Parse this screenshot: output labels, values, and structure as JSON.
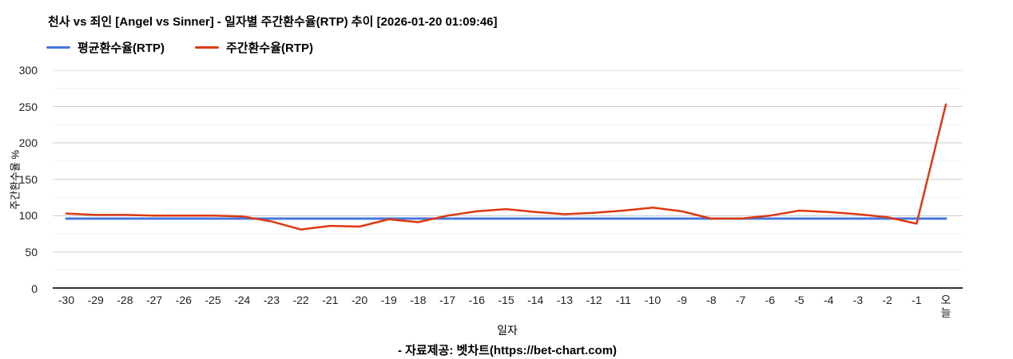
{
  "header": {
    "window_context": "bet-chart weekly RTP trend chart"
  },
  "chart_data": {
    "type": "line",
    "title": "천사 vs 죄인 [Angel vs Sinner] - 일자별 주간환수율(RTP) 추이 [2026-01-20 01:09:46]",
    "xlabel": "일자",
    "ylabel": "주간환수율 %",
    "ylim": [
      0,
      300
    ],
    "yticks": [
      0,
      50,
      100,
      150,
      200,
      250,
      300
    ],
    "grid": true,
    "legend_position": "top",
    "categories": [
      "-30",
      "-29",
      "-28",
      "-27",
      "-26",
      "-25",
      "-24",
      "-23",
      "-22",
      "-21",
      "-20",
      "-19",
      "-18",
      "-17",
      "-16",
      "-15",
      "-14",
      "-13",
      "-12",
      "-11",
      "-10",
      "-9",
      "-8",
      "-7",
      "-6",
      "-5",
      "-4",
      "-3",
      "-2",
      "-1",
      "오늘"
    ],
    "series": [
      {
        "name": "평균환수율(RTP)",
        "color": "#4577dd",
        "values": [
          96,
          96,
          96,
          96,
          96,
          96,
          96,
          96,
          96,
          96,
          96,
          96,
          96,
          96,
          96,
          96,
          96,
          96,
          96,
          96,
          96,
          96,
          96,
          96,
          96,
          96,
          96,
          96,
          96,
          96,
          96
        ]
      },
      {
        "name": "주간환수율(RTP)",
        "color": "#dc3912",
        "values": [
          103,
          101,
          101,
          100,
          100,
          100,
          99,
          92,
          81,
          86,
          85,
          95,
          91,
          100,
          106,
          109,
          105,
          102,
          104,
          107,
          111,
          106,
          96,
          96,
          100,
          107,
          105,
          102,
          98,
          89,
          253
        ]
      }
    ]
  },
  "footer": {
    "source": "- 자료제공: 벳차트(https://bet-chart.com)"
  }
}
